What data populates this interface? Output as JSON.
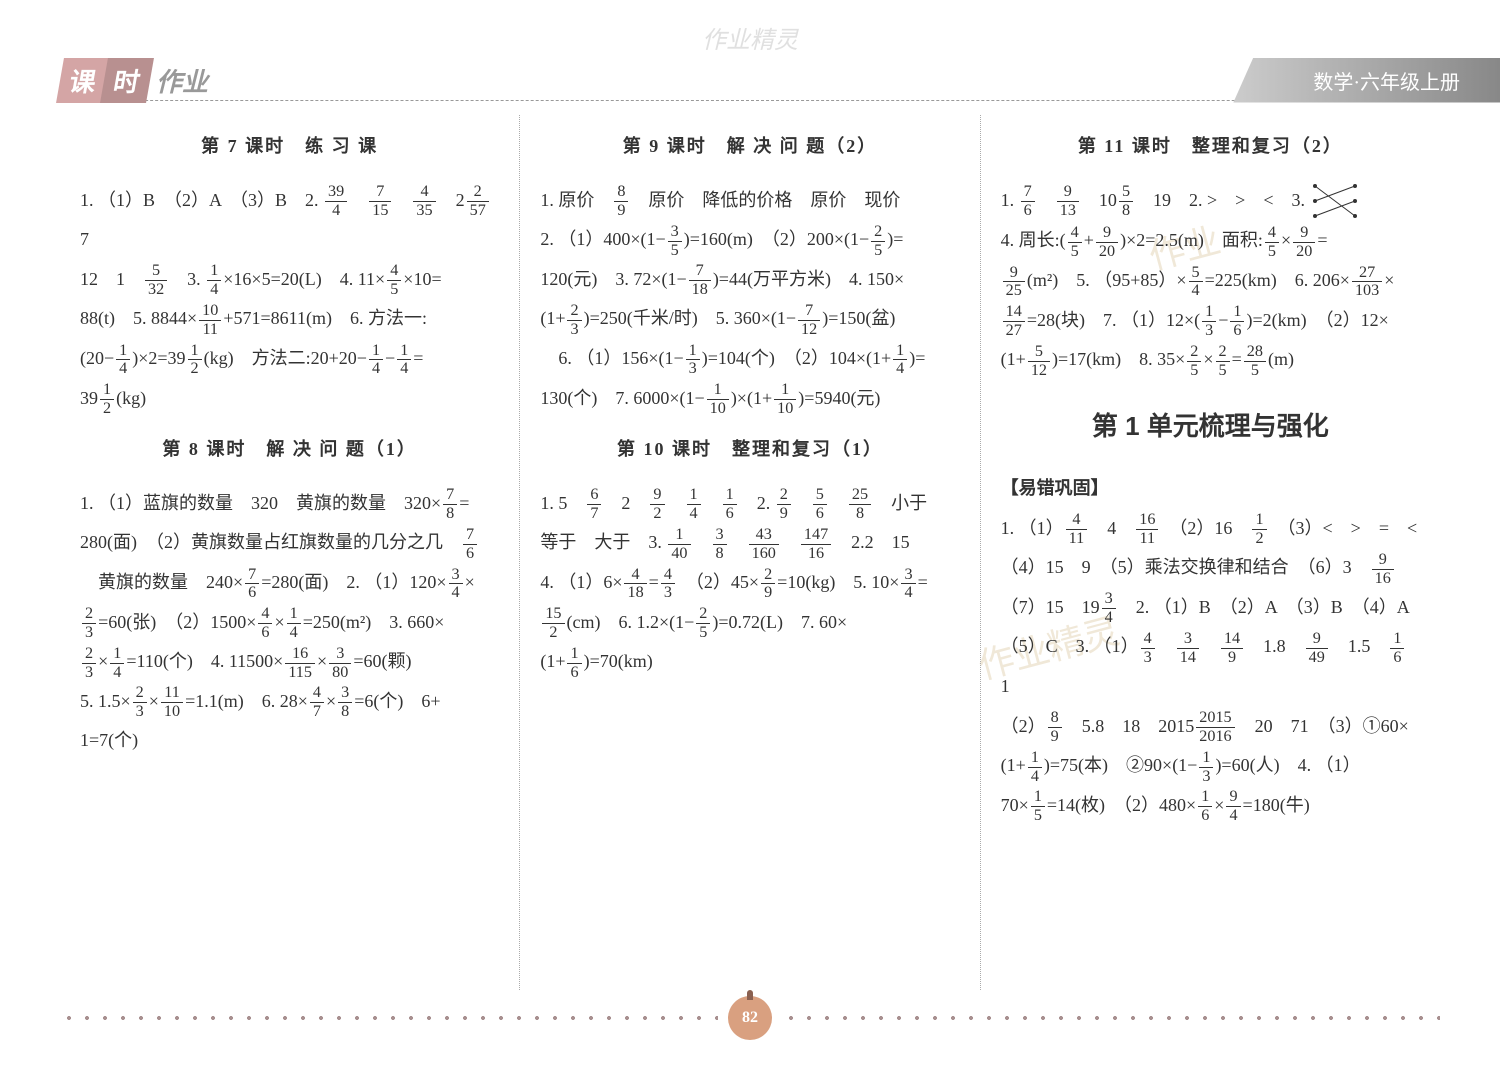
{
  "watermark_top": "作业精灵",
  "header": {
    "badge_char1": "课",
    "badge_char2": "时",
    "badge_rest": "作业",
    "right_text": "数学·六年级上册"
  },
  "columns": {
    "col1": {
      "sec1_title": "第 7 课时　练 习 课",
      "sec1_lines": [
        "1. （1）B　（2）A　（3）B　2. |39/4|　|7/15|　|4/35|　2|2/57|　7",
        "12　1　|5/32|　3. |1/4|×16×5=20(L)　4. 11×|4/5|×10=",
        "88(t)　5. 8844×|10/11|+571=8611(m)　6. 方法一:",
        "(20−|1/4|)×2=39|1/2|(kg)　方法二:20+20−|1/4|−|1/4|=",
        "39|1/2|(kg)"
      ],
      "sec2_title": "第 8 课时　解 决 问 题（1）",
      "sec2_lines": [
        "1. （1）蓝旗的数量　320　黄旗的数量　320×|7/8|=",
        "280(面)　（2）黄旗数量占红旗数量的几分之几　|7/6|",
        "　黄旗的数量　240×|7/6|=280(面)　2. （1）120×|3/4|×",
        "|2/3|=60(张)　（2）1500×|4/6|×|1/4|=250(m²)　3. 660×",
        "|2/3|×|1/4|=110(个)　4. 11500×|16/115|×|3/80|=60(颗)",
        "5. 1.5×|2/3|×|11/10|=1.1(m)　6. 28×|4/7|×|3/8|=6(个)　6+",
        "1=7(个)"
      ]
    },
    "col2": {
      "sec1_title": "第 9 课时　解 决 问 题（2）",
      "sec1_lines": [
        "1. 原价　|8/9|　原价　降低的价格　原价　现价",
        "2. （1）400×(1−|3/5|)=160(m)　（2）200×(1−|2/5|)=",
        "120(元)　3. 72×(1−|7/18|)=44(万平方米)　4. 150×",
        "(1+|2/3|)=250(千米/时)　5. 360×(1−|7/12|)=150(盆)",
        "　6. （1）156×(1−|1/3|)=104(个)　（2）104×(1+|1/4|)=",
        "130(个)　7. 6000×(1−|1/10|)×(1+|1/10|)=5940(元)"
      ],
      "sec2_title": "第 10 课时　整理和复习（1）",
      "sec2_lines": [
        "1. 5　|6/7|　2　|9/2|　|1/4|　|1/6|　2. |2/9|　|5/6|　|25/8|　小于",
        "等于　大于　3. |1/40|　|3/8|　|43/160|　|147/16|　2.2　15",
        "4. （1）6×|4/18|=|4/3|　（2）45×|2/9|=10(kg)　5. 10×|3/4|=",
        "|15/2|(cm)　6. 1.2×(1−|2/5|)=0.72(L)　7. 60×",
        "(1+|1/6|)=70(km)"
      ]
    },
    "col3": {
      "sec1_title": "第 11 课时　整理和复习（2）",
      "sec1_line1_pre": "1. |7/6|　|9/13|　10|5/8|　19　2. >　>　<　3. ",
      "sec1_lines": [
        "4. 周长:(|4/5|+|9/20|)×2=2.5(m)　面积:|4/5|×|9/20|=",
        "|9/25|(m²)　5. （95+85）×|5/4|=225(km)　6. 206×|27/103|×",
        "|14/27|=28(块)　7. （1）12×(|1/3|−|1/6|)=2(km)　（2）12×",
        "(1+|5/12|)=17(km)　8. 35×|2/5|×|2/5|=|28/5|(m)"
      ],
      "unit_title": "第 1 单元梳理与强化",
      "sub_label": "【易错巩固】",
      "sec2_lines": [
        "1. （1）|4/11|　4　|16/11|　（2）16　|1/2|　（3）<　>　=　<",
        "（4）15　9　（5）乘法交换律和结合　（6）3　|9/16|",
        "（7）15　19|3/4|　2. （1）B　（2）A　（3）B　（4）A",
        "（5）C　3. （1）|4/3|　|3/14|　|14/9|　1.8　|9/49|　1.5　|1/6|　1",
        "（2）|8/9|　5.8　18　2015|2015/2016|　20　71　（3）①60×",
        "(1+|1/4|)=75(本)　②90×(1−|1/3|)=60(人)　4. （1）",
        "70×|1/5|=14(枚)　（2）480×|1/6|×|9/4|=180(牛)"
      ]
    }
  },
  "page_number": "82",
  "colors": {
    "text": "#333333",
    "bg": "#ffffff",
    "badge1": "#d4a5a5",
    "badge2": "#b89090",
    "header_grad_start": "#cccccc",
    "header_grad_end": "#888888",
    "pagenum_bg": "#d9a080"
  }
}
